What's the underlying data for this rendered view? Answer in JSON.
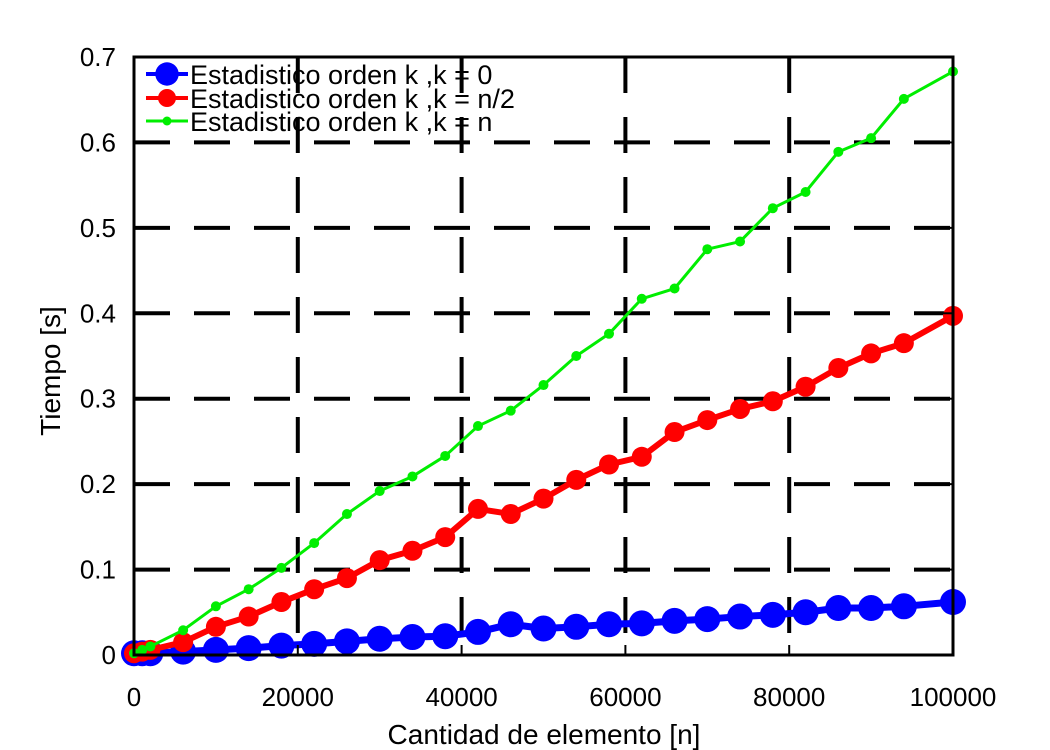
{
  "chart_data": {
    "type": "line",
    "xlabel": "Cantidad de elemento [n]",
    "ylabel": "Tiempo [s]",
    "xlim": [
      0,
      100000
    ],
    "ylim": [
      0,
      0.7
    ],
    "x_ticks": [
      "0",
      "20000",
      "40000",
      "60000",
      "80000",
      "100000"
    ],
    "y_ticks": [
      "0",
      "0.1",
      "0.2",
      "0.3",
      "0.4",
      "0.5",
      "0.6",
      "0.7"
    ],
    "grid": true,
    "legend_position": "top-left",
    "x": [
      0,
      1000,
      2000,
      6000,
      10000,
      14000,
      18000,
      22000,
      26000,
      30000,
      34000,
      38000,
      42000,
      46000,
      50000,
      54000,
      58000,
      62000,
      66000,
      70000,
      74000,
      78000,
      82000,
      86000,
      90000,
      94000,
      100000
    ],
    "series": [
      {
        "name": "Estadistico orden k ,k = 0",
        "color": "#0000ff",
        "values": [
          0.002,
          0.002,
          0.002,
          0.004,
          0.006,
          0.008,
          0.011,
          0.013,
          0.016,
          0.019,
          0.021,
          0.022,
          0.027,
          0.036,
          0.031,
          0.033,
          0.036,
          0.037,
          0.04,
          0.042,
          0.045,
          0.047,
          0.05,
          0.055,
          0.055,
          0.057,
          0.062
        ]
      },
      {
        "name": "Estadistico orden k ,k = n/2",
        "color": "#ff0000",
        "values": [
          0.002,
          0.004,
          0.006,
          0.015,
          0.033,
          0.045,
          0.062,
          0.077,
          0.09,
          0.111,
          0.122,
          0.138,
          0.171,
          0.165,
          0.183,
          0.205,
          0.223,
          0.232,
          0.261,
          0.275,
          0.288,
          0.297,
          0.314,
          0.336,
          0.353,
          0.365,
          0.397
        ]
      },
      {
        "name": "Estadistico orden k ,k = n",
        "color": "#00ee00",
        "values": [
          0.002,
          0.006,
          0.01,
          0.029,
          0.057,
          0.077,
          0.102,
          0.131,
          0.165,
          0.192,
          0.209,
          0.233,
          0.268,
          0.286,
          0.316,
          0.35,
          0.376,
          0.417,
          0.429,
          0.475,
          0.484,
          0.523,
          0.542,
          0.589,
          0.605,
          0.651,
          0.683
        ]
      }
    ]
  }
}
